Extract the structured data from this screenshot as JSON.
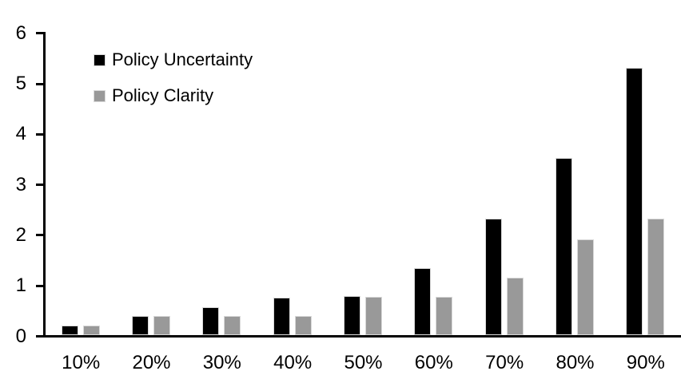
{
  "chart_data": {
    "type": "bar",
    "title": "",
    "xlabel": "",
    "ylabel": "",
    "categories": [
      "10%",
      "20%",
      "30%",
      "40%",
      "50%",
      "60%",
      "70%",
      "80%",
      "90%"
    ],
    "series": [
      {
        "name": "Policy Uncertainty",
        "color": "#000000",
        "values": [
          0.19,
          0.38,
          0.55,
          0.75,
          0.77,
          1.33,
          2.3,
          3.5,
          5.3
        ]
      },
      {
        "name": "Policy Clarity",
        "color": "#999999",
        "values": [
          0.19,
          0.38,
          0.38,
          0.38,
          0.76,
          0.76,
          1.14,
          1.9,
          2.3
        ]
      }
    ],
    "ylim": [
      0,
      6
    ],
    "y_ticks": [
      "0",
      "1",
      "2",
      "3",
      "4",
      "5",
      "6"
    ],
    "grid": false,
    "legend_position": "top-left",
    "axis_color": "#000000",
    "bar_border_color": "#d9d9d9",
    "background_color": "#ffffff"
  }
}
